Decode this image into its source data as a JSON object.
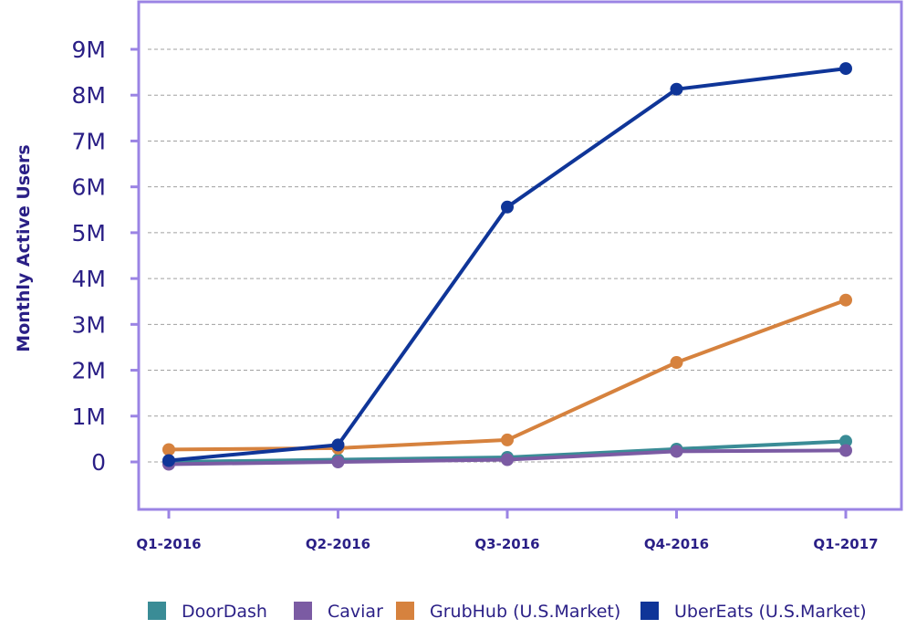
{
  "chart_data": {
    "type": "line",
    "title": "",
    "xlabel": "",
    "ylabel": "Monthly Active Users",
    "x": [
      "Q1-2016",
      "Q2-2016",
      "Q3-2016",
      "Q4-2016",
      "Q1-2017"
    ],
    "y_ticks": [
      "0",
      "1M",
      "2M",
      "3M",
      "4M",
      "5M",
      "6M",
      "7M",
      "8M",
      "9M"
    ],
    "ylim": [
      -1000000,
      10000000
    ],
    "grid": "horizontal dashed",
    "legend_position": "bottom",
    "series": [
      {
        "name": "DoorDash",
        "color": "#3a8c96",
        "values": [
          0,
          50000,
          100000,
          280000,
          450000
        ]
      },
      {
        "name": "Caviar",
        "color": "#7b5ba3",
        "values": [
          -50000,
          0,
          50000,
          230000,
          250000
        ]
      },
      {
        "name": "GrubHub (U.S.Market)",
        "color": "#d6823e",
        "values": [
          270000,
          300000,
          480000,
          2170000,
          3530000
        ]
      },
      {
        "name": "UberEats (U.S.Market)",
        "color": "#0f3598",
        "values": [
          30000,
          370000,
          5560000,
          8130000,
          8580000
        ]
      }
    ]
  },
  "colors": {
    "frame": "#9b84e4",
    "grid": "#a0a0a0",
    "text": "#2a1f86"
  }
}
